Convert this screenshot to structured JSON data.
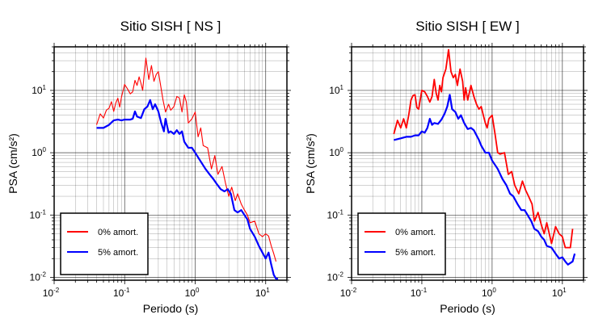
{
  "chart_data": [
    {
      "type": "line",
      "title": "Sitio SISH [ NS ]",
      "xlabel": "Periodo (s)",
      "ylabel": "PSA (cm/s²)",
      "xscale": "log",
      "yscale": "log",
      "xlim": [
        0.01,
        20
      ],
      "ylim": [
        0.009,
        50
      ],
      "grid": true,
      "legend_position": "bottom-left",
      "series": [
        {
          "name": "0% amort.",
          "color": "#ff0000",
          "points": [
            [
              0.04,
              2.8
            ],
            [
              0.045,
              4.2
            ],
            [
              0.05,
              3.6
            ],
            [
              0.055,
              4.8
            ],
            [
              0.06,
              5.2
            ],
            [
              0.065,
              6.6
            ],
            [
              0.07,
              4.6
            ],
            [
              0.075,
              6.3
            ],
            [
              0.08,
              7.5
            ],
            [
              0.085,
              5.4
            ],
            [
              0.09,
              7.8
            ],
            [
              0.1,
              12.5
            ],
            [
              0.11,
              10.5
            ],
            [
              0.12,
              8.8
            ],
            [
              0.13,
              9.5
            ],
            [
              0.14,
              14.5
            ],
            [
              0.15,
              12.0
            ],
            [
              0.16,
              16.5
            ],
            [
              0.17,
              13.0
            ],
            [
              0.18,
              10.0
            ],
            [
              0.19,
              19.0
            ],
            [
              0.2,
              33.0
            ],
            [
              0.21,
              22.0
            ],
            [
              0.22,
              15.0
            ],
            [
              0.24,
              25.0
            ],
            [
              0.26,
              14.0
            ],
            [
              0.28,
              18.0
            ],
            [
              0.3,
              20.0
            ],
            [
              0.32,
              13.0
            ],
            [
              0.35,
              7.0
            ],
            [
              0.38,
              4.5
            ],
            [
              0.42,
              6.0
            ],
            [
              0.45,
              4.8
            ],
            [
              0.5,
              5.5
            ],
            [
              0.55,
              8.0
            ],
            [
              0.6,
              7.5
            ],
            [
              0.65,
              4.5
            ],
            [
              0.7,
              8.5
            ],
            [
              0.75,
              6.5
            ],
            [
              0.8,
              3.0
            ],
            [
              0.9,
              3.5
            ],
            [
              1.0,
              4.5
            ],
            [
              1.1,
              1.8
            ],
            [
              1.2,
              2.5
            ],
            [
              1.3,
              1.3
            ],
            [
              1.5,
              1.2
            ],
            [
              1.7,
              0.55
            ],
            [
              1.9,
              0.9
            ],
            [
              2.1,
              0.45
            ],
            [
              2.4,
              0.6
            ],
            [
              2.7,
              0.32
            ],
            [
              3.0,
              0.2
            ],
            [
              3.3,
              0.28
            ],
            [
              3.7,
              0.17
            ],
            [
              4.0,
              0.22
            ],
            [
              4.5,
              0.15
            ],
            [
              5.0,
              0.12
            ],
            [
              5.5,
              0.1
            ],
            [
              6.0,
              0.075
            ],
            [
              7.0,
              0.08
            ],
            [
              8.0,
              0.05
            ],
            [
              9.0,
              0.045
            ],
            [
              10,
              0.05
            ],
            [
              11,
              0.046
            ],
            [
              12,
              0.032
            ],
            [
              13,
              0.024
            ],
            [
              14,
              0.018
            ]
          ]
        },
        {
          "name": "5% amort.",
          "color": "#0000ff",
          "points": [
            [
              0.04,
              2.5
            ],
            [
              0.05,
              2.5
            ],
            [
              0.06,
              2.8
            ],
            [
              0.07,
              3.3
            ],
            [
              0.08,
              3.4
            ],
            [
              0.09,
              3.3
            ],
            [
              0.1,
              3.4
            ],
            [
              0.12,
              3.4
            ],
            [
              0.13,
              3.5
            ],
            [
              0.14,
              4.6
            ],
            [
              0.15,
              3.8
            ],
            [
              0.17,
              3.6
            ],
            [
              0.19,
              5.0
            ],
            [
              0.21,
              5.5
            ],
            [
              0.23,
              7.0
            ],
            [
              0.25,
              5.0
            ],
            [
              0.27,
              6.0
            ],
            [
              0.3,
              4.6
            ],
            [
              0.33,
              3.0
            ],
            [
              0.36,
              2.2
            ],
            [
              0.38,
              3.5
            ],
            [
              0.42,
              2.1
            ],
            [
              0.45,
              2.2
            ],
            [
              0.5,
              2.0
            ],
            [
              0.55,
              2.3
            ],
            [
              0.6,
              2.0
            ],
            [
              0.65,
              2.2
            ],
            [
              0.7,
              1.5
            ],
            [
              0.8,
              1.2
            ],
            [
              0.9,
              1.2
            ],
            [
              1.0,
              1.0
            ],
            [
              1.2,
              0.72
            ],
            [
              1.4,
              0.55
            ],
            [
              1.6,
              0.45
            ],
            [
              1.8,
              0.38
            ],
            [
              2.0,
              0.32
            ],
            [
              2.3,
              0.26
            ],
            [
              2.6,
              0.24
            ],
            [
              2.9,
              0.26
            ],
            [
              3.2,
              0.22
            ],
            [
              3.6,
              0.12
            ],
            [
              4.0,
              0.11
            ],
            [
              4.5,
              0.12
            ],
            [
              5.0,
              0.1
            ],
            [
              5.5,
              0.085
            ],
            [
              6.0,
              0.06
            ],
            [
              7.0,
              0.045
            ],
            [
              8.0,
              0.032
            ],
            [
              9.0,
              0.025
            ],
            [
              10,
              0.02
            ],
            [
              11,
              0.025
            ],
            [
              12,
              0.016
            ],
            [
              13,
              0.011
            ],
            [
              14,
              0.0095
            ],
            [
              15,
              0.0095
            ]
          ]
        }
      ]
    },
    {
      "type": "line",
      "title": "Sitio SISH [ EW ]",
      "xlabel": "Periodo (s)",
      "ylabel": "PSA (cm/s²)",
      "xscale": "log",
      "yscale": "log",
      "xlim": [
        0.01,
        20
      ],
      "ylim": [
        0.009,
        50
      ],
      "grid": true,
      "legend_position": "bottom-left",
      "series": [
        {
          "name": "0% amort.",
          "color": "#ff0000",
          "points": [
            [
              0.04,
              2.0
            ],
            [
              0.045,
              3.3
            ],
            [
              0.05,
              2.5
            ],
            [
              0.055,
              3.5
            ],
            [
              0.06,
              2.5
            ],
            [
              0.065,
              4.0
            ],
            [
              0.07,
              7.0
            ],
            [
              0.075,
              8.3
            ],
            [
              0.08,
              8.5
            ],
            [
              0.085,
              5.3
            ],
            [
              0.09,
              5.0
            ],
            [
              0.1,
              10.0
            ],
            [
              0.11,
              9.5
            ],
            [
              0.12,
              8.0
            ],
            [
              0.13,
              6.5
            ],
            [
              0.14,
              8.0
            ],
            [
              0.15,
              15.0
            ],
            [
              0.16,
              9.0
            ],
            [
              0.17,
              7.0
            ],
            [
              0.18,
              12.0
            ],
            [
              0.19,
              9.5
            ],
            [
              0.2,
              16.0
            ],
            [
              0.22,
              22.0
            ],
            [
              0.24,
              45.0
            ],
            [
              0.26,
              20.0
            ],
            [
              0.28,
              16.0
            ],
            [
              0.3,
              18.0
            ],
            [
              0.32,
              12.0
            ],
            [
              0.35,
              22.0
            ],
            [
              0.38,
              14.0
            ],
            [
              0.4,
              7.0
            ],
            [
              0.42,
              11.0
            ],
            [
              0.45,
              7.0
            ],
            [
              0.5,
              12.0
            ],
            [
              0.55,
              8.0
            ],
            [
              0.6,
              6.0
            ],
            [
              0.65,
              5.0
            ],
            [
              0.7,
              5.5
            ],
            [
              0.75,
              4.0
            ],
            [
              0.8,
              3.0
            ],
            [
              0.85,
              2.5
            ],
            [
              0.9,
              3.5
            ],
            [
              1.0,
              4.0
            ],
            [
              1.1,
              2.0
            ],
            [
              1.2,
              1.0
            ],
            [
              1.3,
              0.95
            ],
            [
              1.5,
              1.0
            ],
            [
              1.7,
              0.45
            ],
            [
              1.9,
              0.5
            ],
            [
              2.1,
              0.3
            ],
            [
              2.4,
              0.22
            ],
            [
              2.7,
              0.35
            ],
            [
              3.0,
              0.25
            ],
            [
              3.3,
              0.2
            ],
            [
              3.7,
              0.15
            ],
            [
              4.0,
              0.08
            ],
            [
              4.5,
              0.11
            ],
            [
              5.0,
              0.07
            ],
            [
              5.5,
              0.05
            ],
            [
              6.0,
              0.075
            ],
            [
              7.0,
              0.035
            ],
            [
              8.0,
              0.065
            ],
            [
              9.0,
              0.05
            ],
            [
              10,
              0.045
            ],
            [
              11,
              0.03
            ],
            [
              12,
              0.03
            ],
            [
              13,
              0.03
            ],
            [
              14,
              0.06
            ]
          ]
        },
        {
          "name": "5% amort.",
          "color": "#0000ff",
          "points": [
            [
              0.04,
              1.6
            ],
            [
              0.05,
              1.7
            ],
            [
              0.06,
              1.8
            ],
            [
              0.07,
              1.8
            ],
            [
              0.08,
              1.9
            ],
            [
              0.09,
              1.9
            ],
            [
              0.1,
              2.2
            ],
            [
              0.11,
              2.1
            ],
            [
              0.12,
              2.5
            ],
            [
              0.13,
              3.5
            ],
            [
              0.14,
              2.8
            ],
            [
              0.15,
              3.0
            ],
            [
              0.17,
              2.9
            ],
            [
              0.19,
              3.4
            ],
            [
              0.21,
              4.2
            ],
            [
              0.23,
              5.5
            ],
            [
              0.25,
              8.5
            ],
            [
              0.27,
              5.0
            ],
            [
              0.3,
              4.5
            ],
            [
              0.33,
              3.5
            ],
            [
              0.36,
              4.0
            ],
            [
              0.4,
              3.0
            ],
            [
              0.45,
              2.4
            ],
            [
              0.5,
              2.5
            ],
            [
              0.55,
              2.3
            ],
            [
              0.6,
              1.9
            ],
            [
              0.65,
              1.6
            ],
            [
              0.7,
              1.3
            ],
            [
              0.8,
              1.0
            ],
            [
              0.9,
              1.0
            ],
            [
              1.0,
              0.75
            ],
            [
              1.2,
              0.55
            ],
            [
              1.4,
              0.38
            ],
            [
              1.6,
              0.3
            ],
            [
              1.8,
              0.22
            ],
            [
              2.0,
              0.2
            ],
            [
              2.3,
              0.15
            ],
            [
              2.6,
              0.12
            ],
            [
              2.9,
              0.12
            ],
            [
              3.2,
              0.1
            ],
            [
              3.6,
              0.08
            ],
            [
              4.0,
              0.06
            ],
            [
              4.5,
              0.055
            ],
            [
              5.0,
              0.045
            ],
            [
              5.5,
              0.04
            ],
            [
              6.0,
              0.032
            ],
            [
              7.0,
              0.03
            ],
            [
              8.0,
              0.024
            ],
            [
              9.0,
              0.02
            ],
            [
              10,
              0.021
            ],
            [
              11,
              0.018
            ],
            [
              12,
              0.016
            ],
            [
              13,
              0.017
            ],
            [
              14,
              0.018
            ],
            [
              15,
              0.024
            ]
          ]
        }
      ]
    }
  ]
}
